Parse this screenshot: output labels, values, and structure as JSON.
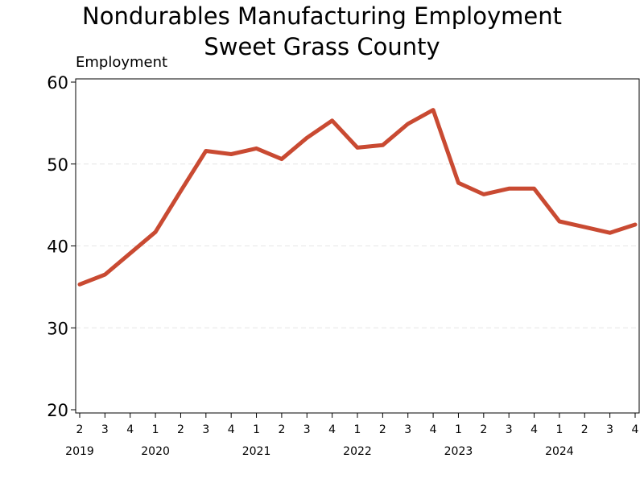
{
  "chart_data": {
    "type": "line",
    "title": "Nondurables Manufacturing Employment",
    "subtitle": "Sweet Grass County",
    "ylabel": "Employment",
    "xlabel": "",
    "ylim": [
      20,
      60
    ],
    "yticks": [
      20,
      30,
      40,
      50,
      60
    ],
    "grid": true,
    "quarters": [
      "2",
      "3",
      "4",
      "1",
      "2",
      "3",
      "4",
      "1",
      "2",
      "3",
      "4",
      "1",
      "2",
      "3",
      "4",
      "1",
      "2",
      "3",
      "4",
      "1",
      "2",
      "3",
      "4"
    ],
    "years": [
      {
        "label": "2019",
        "start_index": 0
      },
      {
        "label": "2020",
        "start_index": 3
      },
      {
        "label": "2021",
        "start_index": 7
      },
      {
        "label": "2022",
        "start_index": 11
      },
      {
        "label": "2023",
        "start_index": 15
      },
      {
        "label": "2024",
        "start_index": 19
      }
    ],
    "series": [
      {
        "color": "#c94a32",
        "values": [
          35.3,
          36.5,
          39.1,
          41.7,
          46.7,
          51.6,
          51.2,
          51.9,
          50.6,
          53.2,
          55.3,
          52.0,
          52.3,
          54.9,
          56.6,
          47.7,
          46.3,
          47.0,
          47.0,
          43.0,
          42.3,
          41.6,
          42.6
        ]
      }
    ]
  }
}
